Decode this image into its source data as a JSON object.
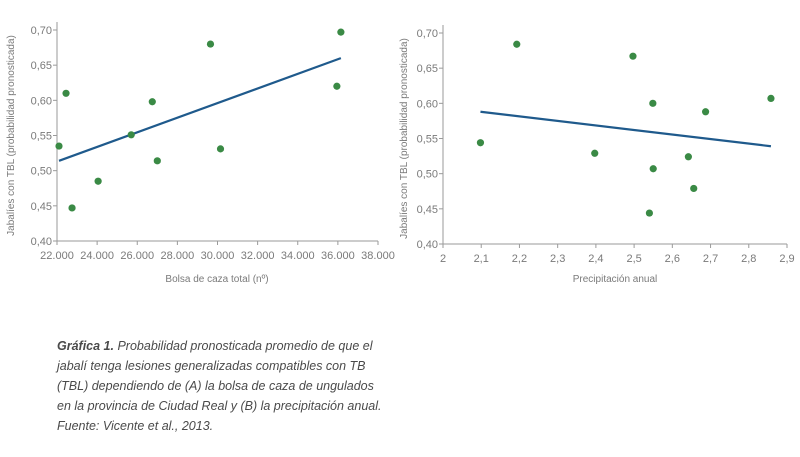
{
  "caption": {
    "lead": "Gráfica 1.",
    "text": " Probabilidad pronosticada promedio de que el jabalí tenga lesiones generalizadas compatibles con TB (TBL) dependiendo de (A) la bolsa de caza de ungulados en la provincia de Ciudad Real y (B) la precipitación anual. Fuente: Vicente et al., 2013."
  },
  "colors": {
    "points": "#3a8a45",
    "line": "#1f5a8c",
    "axis": "#9a9a9a",
    "text": "#7a7a7a"
  },
  "chart_data": [
    {
      "type": "scatter",
      "xlabel": "Bolsa de caza total (nº)",
      "ylabel": "Jabalíes con TBL (probabilidad pronosticada)",
      "xlim": [
        22000,
        38000
      ],
      "ylim": [
        0.4,
        0.7
      ],
      "xticks": [
        "22.000",
        "24.000",
        "26.000",
        "28.000",
        "30.000",
        "32.000",
        "34.000",
        "36.000",
        "38.000"
      ],
      "yticks": [
        "0,40",
        "0,45",
        "0,50",
        "0,55",
        "0,60",
        "0,65",
        "0,70"
      ],
      "points": [
        {
          "x": 22100,
          "y": 0.535
        },
        {
          "x": 22450,
          "y": 0.61
        },
        {
          "x": 22750,
          "y": 0.447
        },
        {
          "x": 24050,
          "y": 0.485
        },
        {
          "x": 25700,
          "y": 0.551
        },
        {
          "x": 26750,
          "y": 0.598
        },
        {
          "x": 27000,
          "y": 0.514
        },
        {
          "x": 29650,
          "y": 0.68
        },
        {
          "x": 30150,
          "y": 0.531
        },
        {
          "x": 35950,
          "y": 0.62
        },
        {
          "x": 36150,
          "y": 0.697
        }
      ],
      "trend": [
        {
          "x": 22100,
          "y": 0.514
        },
        {
          "x": 36150,
          "y": 0.66
        }
      ]
    },
    {
      "type": "scatter",
      "xlabel": "Precipitación anual",
      "ylabel": "Jabalíes con TBL (probabilidad pronosticada)",
      "xlim": [
        2.0,
        2.9
      ],
      "ylim": [
        0.4,
        0.7
      ],
      "xticks": [
        "2",
        "2,1",
        "2,2",
        "2,3",
        "2,4",
        "2,5",
        "2,6",
        "2,7",
        "2,8",
        "2,9"
      ],
      "yticks": [
        "0,40",
        "0,45",
        "0,50",
        "0,55",
        "0,60",
        "0,65",
        "0,70"
      ],
      "points": [
        {
          "x": 2.098,
          "y": 0.544
        },
        {
          "x": 2.193,
          "y": 0.684
        },
        {
          "x": 2.397,
          "y": 0.529
        },
        {
          "x": 2.497,
          "y": 0.667
        },
        {
          "x": 2.54,
          "y": 0.444
        },
        {
          "x": 2.549,
          "y": 0.6
        },
        {
          "x": 2.55,
          "y": 0.507
        },
        {
          "x": 2.642,
          "y": 0.524
        },
        {
          "x": 2.656,
          "y": 0.479
        },
        {
          "x": 2.687,
          "y": 0.588
        },
        {
          "x": 2.858,
          "y": 0.607
        }
      ],
      "trend": [
        {
          "x": 2.098,
          "y": 0.588
        },
        {
          "x": 2.858,
          "y": 0.539
        }
      ]
    }
  ]
}
